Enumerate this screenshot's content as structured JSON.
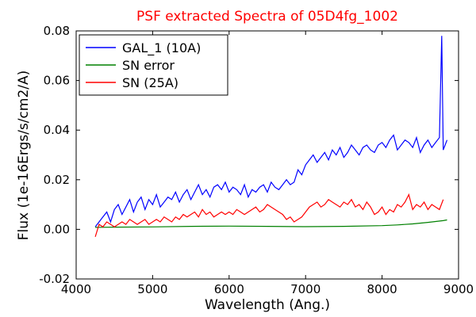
{
  "chart_data": {
    "type": "line",
    "title": "PSF extracted Spectra of 05D4fg_1002",
    "title_color": "#ff0000",
    "xlabel": "Wavelength (Ang.)",
    "ylabel": "Flux (1e-16Ergs/s/cm2/A)",
    "xlim": [
      4000,
      9000
    ],
    "ylim": [
      -0.02,
      0.08
    ],
    "x_ticks": [
      4000,
      5000,
      6000,
      7000,
      8000,
      9000
    ],
    "x_tick_labels": [
      "4000",
      "5000",
      "6000",
      "7000",
      "8000",
      "9000"
    ],
    "y_ticks": [
      -0.02,
      0.0,
      0.02,
      0.04,
      0.06,
      0.08
    ],
    "y_tick_labels": [
      "-0.02",
      "0.00",
      "0.02",
      "0.04",
      "0.06",
      "0.08"
    ],
    "grid": false,
    "legend_position": "top-left",
    "series": [
      {
        "name": "GAL_1 (10A)",
        "color": "#0000ff",
        "x": [
          4250,
          4300,
          4350,
          4400,
          4450,
          4500,
          4550,
          4600,
          4650,
          4700,
          4750,
          4800,
          4850,
          4900,
          4950,
          5000,
          5050,
          5100,
          5150,
          5200,
          5250,
          5300,
          5350,
          5400,
          5450,
          5500,
          5550,
          5600,
          5650,
          5700,
          5750,
          5800,
          5850,
          5900,
          5950,
          6000,
          6050,
          6100,
          6150,
          6200,
          6250,
          6300,
          6350,
          6400,
          6450,
          6500,
          6550,
          6600,
          6650,
          6700,
          6750,
          6800,
          6850,
          6900,
          6950,
          7000,
          7050,
          7100,
          7150,
          7200,
          7250,
          7300,
          7350,
          7400,
          7450,
          7500,
          7550,
          7600,
          7650,
          7700,
          7750,
          7800,
          7850,
          7900,
          7950,
          8000,
          8050,
          8100,
          8150,
          8200,
          8250,
          8300,
          8350,
          8400,
          8450,
          8500,
          8550,
          8600,
          8650,
          8700,
          8750,
          8780,
          8800,
          8850
        ],
        "y": [
          0.001,
          0.003,
          0.005,
          0.007,
          0.003,
          0.008,
          0.01,
          0.006,
          0.009,
          0.012,
          0.007,
          0.011,
          0.013,
          0.008,
          0.012,
          0.01,
          0.014,
          0.009,
          0.011,
          0.013,
          0.012,
          0.015,
          0.011,
          0.014,
          0.016,
          0.012,
          0.015,
          0.018,
          0.014,
          0.016,
          0.013,
          0.017,
          0.018,
          0.016,
          0.019,
          0.015,
          0.017,
          0.016,
          0.014,
          0.018,
          0.013,
          0.016,
          0.015,
          0.017,
          0.018,
          0.015,
          0.019,
          0.017,
          0.016,
          0.018,
          0.02,
          0.018,
          0.019,
          0.024,
          0.022,
          0.026,
          0.028,
          0.03,
          0.027,
          0.029,
          0.031,
          0.028,
          0.032,
          0.03,
          0.033,
          0.029,
          0.031,
          0.034,
          0.032,
          0.03,
          0.033,
          0.034,
          0.032,
          0.031,
          0.034,
          0.035,
          0.033,
          0.036,
          0.038,
          0.032,
          0.034,
          0.036,
          0.035,
          0.033,
          0.037,
          0.031,
          0.034,
          0.036,
          0.033,
          0.035,
          0.037,
          0.078,
          0.032,
          0.036
        ]
      },
      {
        "name": "SN error",
        "color": "#008000",
        "x": [
          4250,
          4500,
          5000,
          5500,
          6000,
          6500,
          7000,
          7500,
          8000,
          8200,
          8400,
          8600,
          8800,
          8850
        ],
        "y": [
          0.0008,
          0.0009,
          0.001,
          0.0012,
          0.0013,
          0.0012,
          0.0011,
          0.0012,
          0.0015,
          0.0018,
          0.0022,
          0.0028,
          0.0035,
          0.0038
        ]
      },
      {
        "name": "SN (25A)",
        "color": "#ff0000",
        "x": [
          4250,
          4300,
          4350,
          4400,
          4450,
          4500,
          4550,
          4600,
          4650,
          4700,
          4750,
          4800,
          4850,
          4900,
          4950,
          5000,
          5050,
          5100,
          5150,
          5200,
          5250,
          5300,
          5350,
          5400,
          5450,
          5500,
          5550,
          5600,
          5650,
          5700,
          5750,
          5800,
          5850,
          5900,
          5950,
          6000,
          6050,
          6100,
          6150,
          6200,
          6250,
          6300,
          6350,
          6400,
          6450,
          6500,
          6550,
          6600,
          6650,
          6700,
          6750,
          6800,
          6850,
          6900,
          6950,
          7000,
          7050,
          7100,
          7150,
          7200,
          7250,
          7300,
          7350,
          7400,
          7450,
          7500,
          7550,
          7600,
          7650,
          7700,
          7750,
          7800,
          7850,
          7900,
          7950,
          8000,
          8050,
          8100,
          8150,
          8200,
          8250,
          8300,
          8350,
          8400,
          8450,
          8500,
          8550,
          8600,
          8650,
          8700,
          8750,
          8800
        ],
        "y": [
          -0.003,
          0.002,
          0.001,
          0.003,
          0.002,
          0.001,
          0.002,
          0.003,
          0.002,
          0.004,
          0.003,
          0.002,
          0.003,
          0.004,
          0.002,
          0.003,
          0.004,
          0.003,
          0.005,
          0.004,
          0.003,
          0.005,
          0.004,
          0.006,
          0.005,
          0.006,
          0.007,
          0.005,
          0.008,
          0.006,
          0.007,
          0.005,
          0.006,
          0.007,
          0.006,
          0.007,
          0.006,
          0.008,
          0.007,
          0.006,
          0.007,
          0.008,
          0.009,
          0.007,
          0.008,
          0.01,
          0.009,
          0.008,
          0.007,
          0.006,
          0.004,
          0.005,
          0.003,
          0.004,
          0.005,
          0.007,
          0.009,
          0.01,
          0.011,
          0.009,
          0.01,
          0.012,
          0.011,
          0.01,
          0.009,
          0.011,
          0.01,
          0.012,
          0.009,
          0.01,
          0.008,
          0.011,
          0.009,
          0.006,
          0.007,
          0.009,
          0.006,
          0.008,
          0.007,
          0.01,
          0.009,
          0.011,
          0.014,
          0.008,
          0.01,
          0.009,
          0.011,
          0.008,
          0.01,
          0.009,
          0.008,
          0.012
        ]
      }
    ]
  }
}
